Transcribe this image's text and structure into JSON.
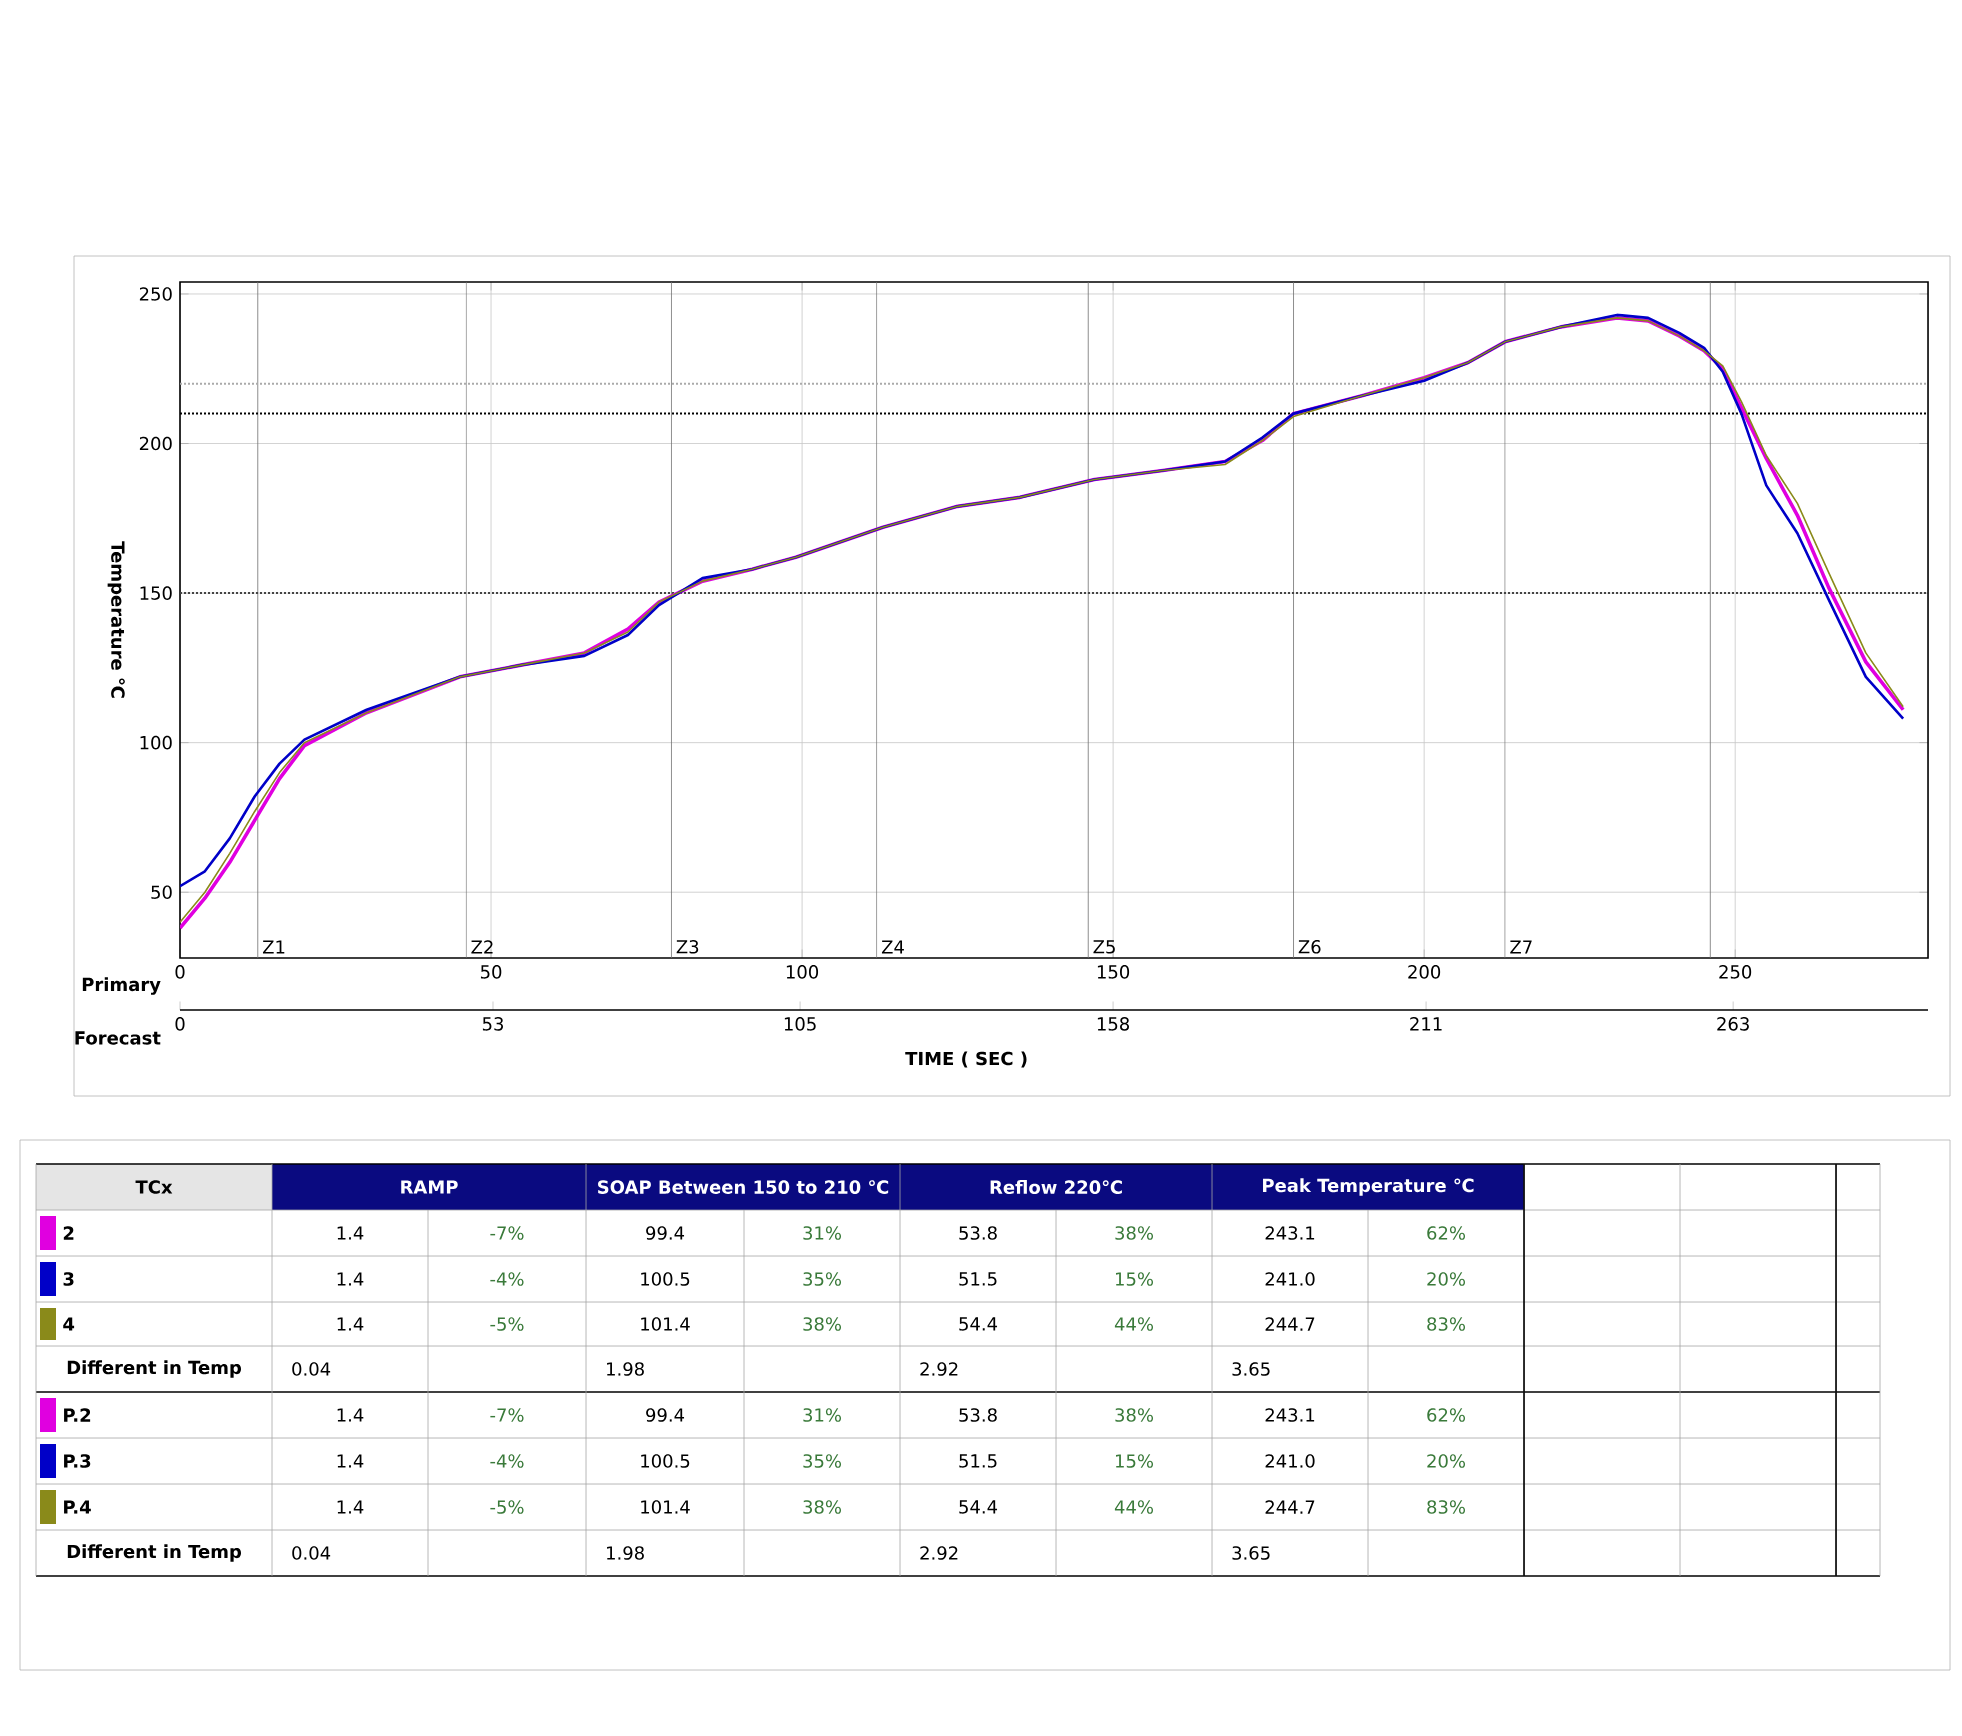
{
  "chart_data": {
    "type": "line",
    "xlabel": "TIME ( SEC )",
    "ylabel": "Temperature ℃",
    "x2label": "Forecast",
    "x": [
      0,
      4,
      8,
      12,
      16,
      20,
      30,
      45,
      55,
      65,
      72,
      77,
      84,
      92,
      99,
      106,
      113,
      125,
      135,
      147,
      158,
      168,
      174,
      179,
      190,
      200,
      207,
      213,
      222,
      231,
      236,
      241,
      245,
      248,
      251,
      255,
      260,
      265,
      271,
      277
    ],
    "series": [
      {
        "name": "2",
        "color": "#e000e0",
        "values": [
          38,
          48,
          60,
          74,
          88,
          99,
          110,
          122,
          126,
          130,
          138,
          147,
          154,
          158,
          162,
          167,
          172,
          179,
          182,
          188,
          191,
          194,
          201,
          210,
          216,
          222,
          227,
          234,
          239,
          242,
          241,
          236,
          231,
          225,
          212,
          195,
          176,
          152,
          127,
          111
        ]
      },
      {
        "name": "3",
        "color": "#0000c8",
        "values": [
          52,
          57,
          68,
          82,
          93,
          101,
          111,
          122,
          126,
          129,
          136,
          146,
          155,
          158,
          162,
          167,
          172,
          179,
          182,
          188,
          191,
          194,
          202,
          210,
          216,
          221,
          227,
          234,
          239,
          243,
          242,
          237,
          232,
          224,
          210,
          186,
          170,
          148,
          122,
          108
        ]
      },
      {
        "name": "4",
        "color": "#8a8a1a",
        "values": [
          40,
          50,
          63,
          77,
          90,
          100,
          110,
          122,
          126,
          130,
          137,
          147,
          154,
          158,
          162,
          167,
          172,
          179,
          182,
          188,
          191,
          193,
          201,
          209,
          216,
          222,
          227,
          234,
          239,
          242,
          241,
          236,
          231,
          226,
          214,
          196,
          180,
          157,
          130,
          112
        ]
      }
    ],
    "xlim": [
      0,
      281
    ],
    "ylim": [
      28,
      254
    ],
    "xticks": [
      0,
      50,
      100,
      150,
      200,
      250
    ],
    "yticks": [
      50,
      100,
      150,
      200,
      250
    ],
    "x2lim": [
      0,
      296
    ],
    "x2ticks": [
      0,
      53,
      105,
      158,
      211,
      263
    ],
    "grid": true,
    "legend": "bottom",
    "ref_lines": [
      {
        "axis": "x",
        "value": 12.5,
        "label": "Z1",
        "color": "#707070"
      },
      {
        "axis": "x",
        "value": 46,
        "label": "Z2",
        "color": "#707070"
      },
      {
        "axis": "x",
        "value": 79,
        "label": "Z3",
        "color": "#707070"
      },
      {
        "axis": "x",
        "value": 112,
        "label": "Z4",
        "color": "#707070"
      },
      {
        "axis": "x",
        "value": 146,
        "label": "Z5",
        "color": "#707070"
      },
      {
        "axis": "x",
        "value": 179,
        "label": "Z6",
        "color": "#707070"
      },
      {
        "axis": "x",
        "value": 213,
        "label": "Z7",
        "color": "#707070"
      },
      {
        "axis": "x",
        "value": 246,
        "color": "#707070"
      },
      {
        "axis": "y",
        "value": 220,
        "color": "#aaaaaa",
        "line_style": "dotted"
      },
      {
        "axis": "y",
        "value": 210,
        "color": "#000000",
        "line_style": "dotted"
      },
      {
        "axis": "y",
        "value": 150,
        "color": "#444444",
        "line_style": "dotted"
      }
    ],
    "annotations": [
      "Primary",
      "TCx",
      "RAMP",
      "SOAP Between 150 to 210 ℃",
      "Reflow 220℃",
      "Peak Temperature ℃",
      "1.4",
      "-7%",
      "99.4",
      "31%",
      "53.8",
      "38%",
      "243.1",
      "62%",
      "1.4",
      "-4%",
      "100.5",
      "35%",
      "51.5",
      "15%",
      "241.0",
      "20%",
      "1.4",
      "-5%",
      "101.4",
      "38%",
      "54.4",
      "44%",
      "244.7",
      "83%",
      "Different in Temp",
      "0.04",
      "1.98",
      "2.92",
      "3.65",
      "P.2",
      "1.4",
      "-7%",
      "99.4",
      "31%",
      "53.8",
      "38%",
      "243.1",
      "62%",
      "P.3",
      "1.4",
      "-4%",
      "100.5",
      "35%",
      "51.5",
      "15%",
      "241.0",
      "20%",
      "P.4",
      "1.4",
      "-5%",
      "101.4",
      "38%",
      "54.4",
      "44%",
      "244.7",
      "83%",
      "Different in Temp",
      "0.04",
      "1.98",
      "2.92",
      "3.65"
    ]
  }
}
